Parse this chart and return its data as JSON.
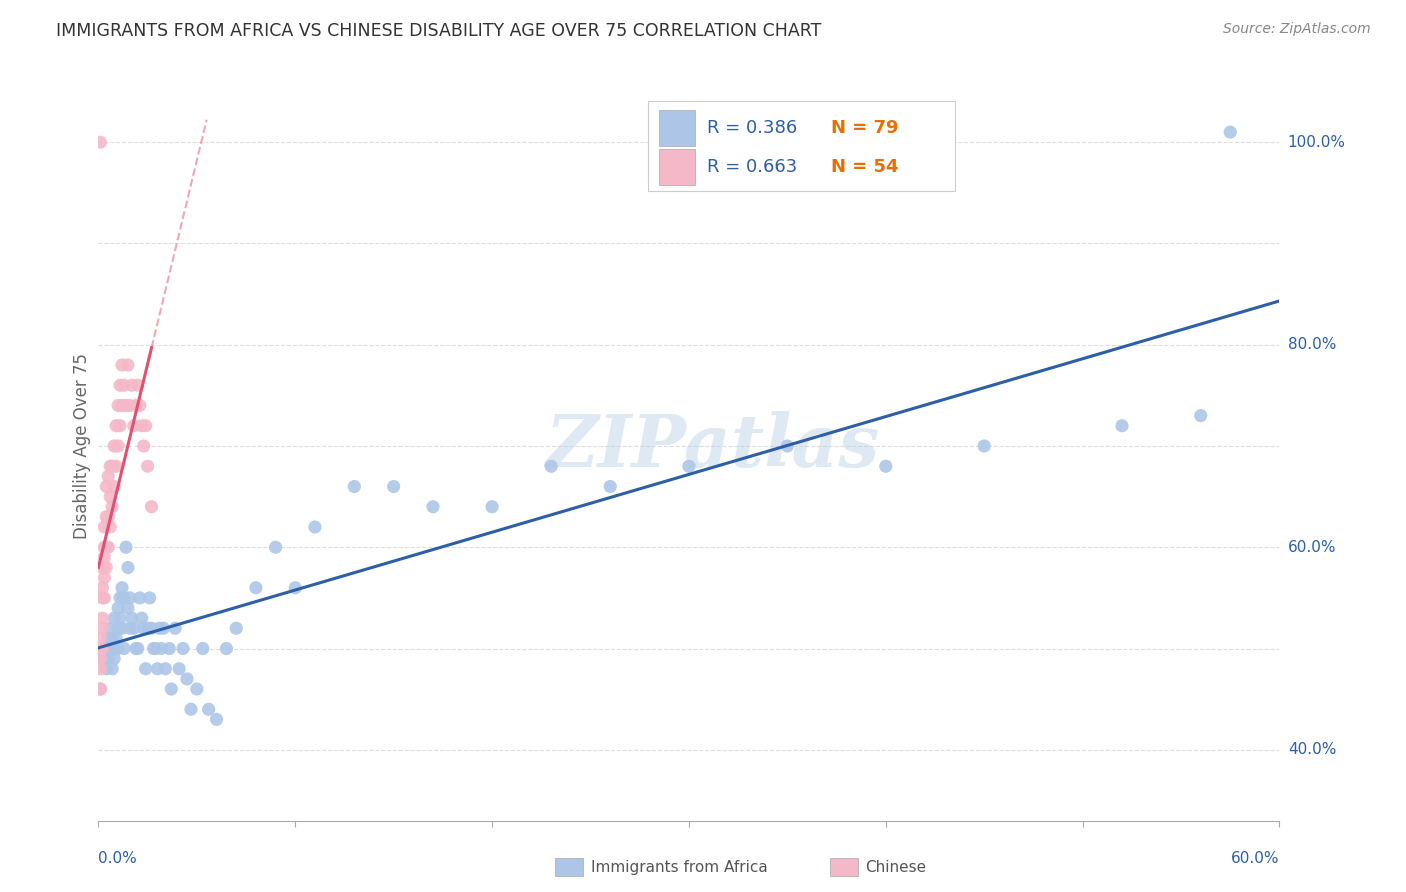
{
  "title": "IMMIGRANTS FROM AFRICA VS CHINESE DISABILITY AGE OVER 75 CORRELATION CHART",
  "source": "Source: ZipAtlas.com",
  "ylabel": "Disability Age Over 75",
  "xlim": [
    0.0,
    0.6
  ],
  "ylim": [
    0.33,
    1.07
  ],
  "africa_R": 0.386,
  "africa_N": 79,
  "chinese_R": 0.663,
  "chinese_N": 54,
  "africa_color": "#adc6e8",
  "chinese_color": "#f5b8c8",
  "africa_line_color": "#2c5fa8",
  "chinese_line_color": "#e05070",
  "legend_R_color": "#2c5fa8",
  "legend_N_color": "#e87000",
  "background_color": "#ffffff",
  "grid_color": "#dddddd",
  "watermark": "ZIPatlas",
  "africa_scatter_x": [
    0.002,
    0.003,
    0.004,
    0.004,
    0.005,
    0.005,
    0.005,
    0.006,
    0.006,
    0.007,
    0.007,
    0.007,
    0.008,
    0.008,
    0.008,
    0.009,
    0.009,
    0.01,
    0.01,
    0.01,
    0.011,
    0.011,
    0.012,
    0.012,
    0.013,
    0.013,
    0.014,
    0.015,
    0.015,
    0.016,
    0.016,
    0.017,
    0.018,
    0.019,
    0.02,
    0.021,
    0.022,
    0.023,
    0.024,
    0.025,
    0.026,
    0.027,
    0.028,
    0.029,
    0.03,
    0.031,
    0.032,
    0.033,
    0.034,
    0.036,
    0.037,
    0.039,
    0.041,
    0.043,
    0.045,
    0.047,
    0.05,
    0.053,
    0.056,
    0.06,
    0.065,
    0.07,
    0.08,
    0.09,
    0.1,
    0.11,
    0.13,
    0.15,
    0.17,
    0.2,
    0.23,
    0.26,
    0.3,
    0.35,
    0.4,
    0.45,
    0.52,
    0.56,
    0.575
  ],
  "africa_scatter_y": [
    0.49,
    0.5,
    0.5,
    0.48,
    0.51,
    0.5,
    0.49,
    0.52,
    0.5,
    0.51,
    0.48,
    0.5,
    0.53,
    0.5,
    0.49,
    0.51,
    0.5,
    0.54,
    0.52,
    0.5,
    0.55,
    0.53,
    0.56,
    0.52,
    0.55,
    0.5,
    0.6,
    0.58,
    0.54,
    0.52,
    0.55,
    0.53,
    0.52,
    0.5,
    0.5,
    0.55,
    0.53,
    0.52,
    0.48,
    0.52,
    0.55,
    0.52,
    0.5,
    0.5,
    0.48,
    0.52,
    0.5,
    0.52,
    0.48,
    0.5,
    0.46,
    0.52,
    0.48,
    0.5,
    0.47,
    0.44,
    0.46,
    0.5,
    0.44,
    0.43,
    0.5,
    0.52,
    0.56,
    0.6,
    0.56,
    0.62,
    0.66,
    0.66,
    0.64,
    0.64,
    0.68,
    0.66,
    0.68,
    0.7,
    0.68,
    0.7,
    0.72,
    0.73,
    1.01
  ],
  "chinese_scatter_x": [
    0.001,
    0.001,
    0.001,
    0.001,
    0.001,
    0.001,
    0.002,
    0.002,
    0.002,
    0.002,
    0.002,
    0.002,
    0.003,
    0.003,
    0.003,
    0.003,
    0.003,
    0.004,
    0.004,
    0.004,
    0.004,
    0.005,
    0.005,
    0.005,
    0.006,
    0.006,
    0.006,
    0.007,
    0.007,
    0.008,
    0.008,
    0.009,
    0.009,
    0.01,
    0.01,
    0.011,
    0.011,
    0.012,
    0.012,
    0.013,
    0.014,
    0.015,
    0.016,
    0.017,
    0.018,
    0.019,
    0.02,
    0.021,
    0.022,
    0.023,
    0.024,
    0.025,
    0.027,
    0.001
  ],
  "chinese_scatter_y": [
    0.46,
    0.46,
    0.48,
    0.49,
    0.5,
    0.51,
    0.5,
    0.52,
    0.53,
    0.55,
    0.56,
    0.58,
    0.55,
    0.57,
    0.59,
    0.6,
    0.62,
    0.58,
    0.6,
    0.63,
    0.66,
    0.6,
    0.63,
    0.67,
    0.62,
    0.65,
    0.68,
    0.64,
    0.68,
    0.66,
    0.7,
    0.68,
    0.72,
    0.7,
    0.74,
    0.72,
    0.76,
    0.74,
    0.78,
    0.76,
    0.74,
    0.78,
    0.74,
    0.76,
    0.72,
    0.74,
    0.76,
    0.74,
    0.72,
    0.7,
    0.72,
    0.68,
    0.64,
    1.0
  ],
  "y_label_vals": [
    0.4,
    0.6,
    0.8,
    1.0
  ],
  "y_label_texts": [
    "40.0%",
    "60.0%",
    "80.0%",
    "100.0%"
  ],
  "x_tick_positions": [
    0.0,
    0.1,
    0.2,
    0.3,
    0.4,
    0.5,
    0.6
  ]
}
